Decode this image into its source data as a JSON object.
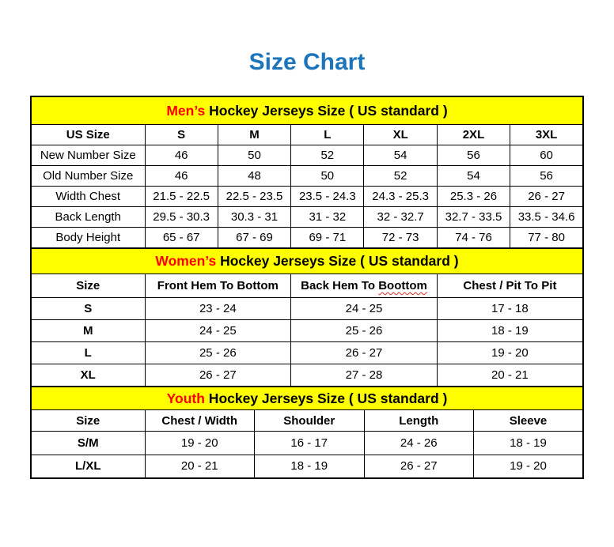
{
  "page_title": "Size Chart",
  "colors": {
    "title_blue": "#1B75BB",
    "band_yellow": "#FFFF00",
    "accent_red": "#FF0000",
    "squiggle_red": "#E02B20",
    "border_black": "#000000"
  },
  "chart_data": [
    {
      "type": "table",
      "id": "mens",
      "title": "Men’s Hockey Jerseys Size ( US standard )",
      "title_accent": "Men’s",
      "title_rest": " Hockey Jerseys Size ( US standard )",
      "columns": [
        "US Size",
        "S",
        "M",
        "L",
        "XL",
        "2XL",
        "3XL"
      ],
      "rows": [
        [
          "New Number Size",
          "46",
          "50",
          "52",
          "54",
          "56",
          "60"
        ],
        [
          "Old Number Size",
          "46",
          "48",
          "50",
          "52",
          "54",
          "56"
        ],
        [
          "Width Chest",
          "21.5 - 22.5",
          "22.5 - 23.5",
          "23.5 - 24.3",
          "24.3 - 25.3",
          "25.3 - 26",
          "26 - 27"
        ],
        [
          "Back Length",
          "29.5 - 30.3",
          "30.3 - 31",
          "31 - 32",
          "32 - 32.7",
          "32.7 - 33.5",
          "33.5 - 34.6"
        ],
        [
          "Body Height",
          "65 - 67",
          "67 - 69",
          "69 - 71",
          "72 - 73",
          "74 - 76",
          "77 - 80"
        ]
      ]
    },
    {
      "type": "table",
      "id": "womens",
      "title": "Women’s Hockey Jerseys Size ( US standard )",
      "title_accent": "Women’s",
      "title_rest": " Hockey Jerseys Size ( US standard )",
      "columns": [
        "Size",
        "Front Hem To Bottom",
        "Back Hem To Boottom",
        "Chest / Pit To Pit"
      ],
      "misspelled_word": "Boottom",
      "rows": [
        [
          "S",
          "23 - 24",
          "24 - 25",
          "17 - 18"
        ],
        [
          "M",
          "24 - 25",
          "25 - 26",
          "18 - 19"
        ],
        [
          "L",
          "25 - 26",
          "26 - 27",
          "19 - 20"
        ],
        [
          "XL",
          "26 - 27",
          "27 - 28",
          "20 - 21"
        ]
      ]
    },
    {
      "type": "table",
      "id": "youth",
      "title": "Youth Hockey Jerseys Size ( US standard )",
      "title_accent": "Youth",
      "title_rest": " Hockey Jerseys Size ( US standard )",
      "columns": [
        "Size",
        "Chest / Width",
        "Shoulder",
        "Length",
        "Sleeve"
      ],
      "rows": [
        [
          "S/M",
          "19 - 20",
          "16 - 17",
          "24 - 26",
          "18 - 19"
        ],
        [
          "L/XL",
          "20 - 21",
          "18 - 19",
          "26 - 27",
          "19 - 20"
        ]
      ]
    }
  ]
}
